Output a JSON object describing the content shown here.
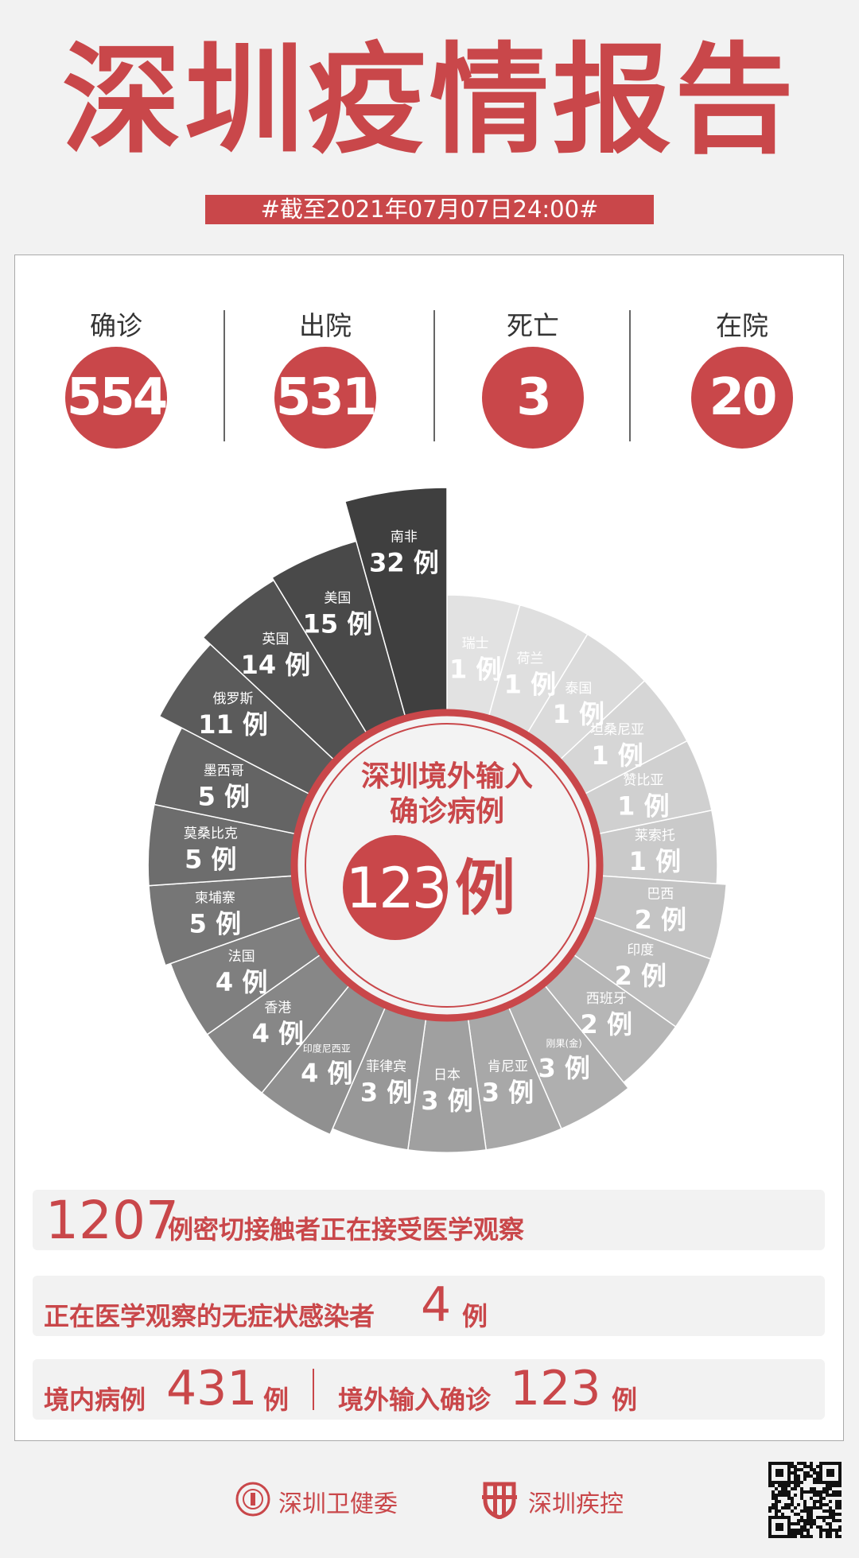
{
  "header": {
    "title": "深圳疫情报告",
    "date_banner": "#截至2021年07月07日24:00#"
  },
  "stats": [
    {
      "label": "确诊",
      "value": "554"
    },
    {
      "label": "出院",
      "value": "531"
    },
    {
      "label": "死亡",
      "value": "3"
    },
    {
      "label": "在院",
      "value": "20"
    }
  ],
  "colors": {
    "accent": "#c9474a",
    "background": "#f2f2f2",
    "segment_light": "#e2e2e2",
    "segment_dark": "#3f3f3f"
  },
  "chart_data": {
    "type": "bar",
    "layout": "radial",
    "unit": "例",
    "center_title_line1": "深圳境外输入",
    "center_title_line2": "确诊病例",
    "center_total": "123",
    "center_unit": "例",
    "categories": [
      "瑞士",
      "荷兰",
      "泰国",
      "坦桑尼亚",
      "赞比亚",
      "莱索托",
      "巴西",
      "印度",
      "西班牙",
      "刚果(金)",
      "肯尼亚",
      "日本",
      "菲律宾",
      "印度尼西亚",
      "香港",
      "法国",
      "柬埔寨",
      "莫桑比克",
      "墨西哥",
      "俄罗斯",
      "英国",
      "美国",
      "南非"
    ],
    "values": [
      1,
      1,
      1,
      1,
      1,
      1,
      2,
      2,
      2,
      3,
      3,
      3,
      3,
      4,
      4,
      4,
      5,
      5,
      5,
      11,
      14,
      15,
      32
    ]
  },
  "summary": {
    "contacts_value": "1207",
    "contacts_text": "例密切接触者正在接受医学观察",
    "asymptomatic_text": "正在医学观察的无症状感染者",
    "asymptomatic_value": "4",
    "asymptomatic_unit": "例",
    "local_label": "境内病例",
    "local_value": "431",
    "local_unit": "例",
    "imported_label": "境外输入确诊",
    "imported_value": "123",
    "imported_unit": "例"
  },
  "footer": {
    "org1": "深圳卫健委",
    "org2": "深圳疾控",
    "logo1_icon": "health-commission-emblem",
    "logo2_icon": "cdc-shield-logo",
    "qr_icon": "qr-code"
  }
}
